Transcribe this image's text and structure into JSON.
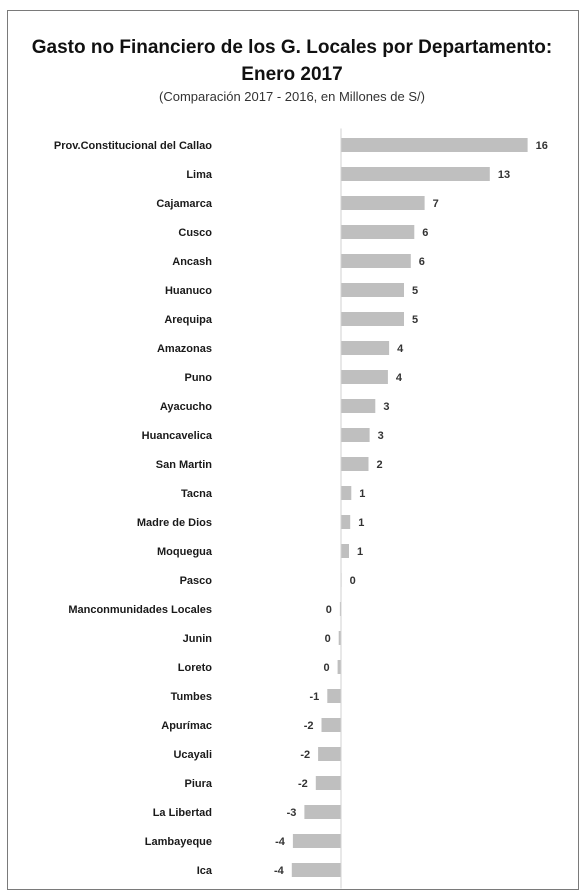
{
  "chart_data": {
    "type": "bar",
    "orientation": "horizontal",
    "title_line1": "Gasto no Financiero de los G. Locales por Departamento:",
    "title_line2": "Enero 2017",
    "subtitle": "(Comparación 2017 - 2016, en Millones de S/)",
    "bar_color": "#bfbfbf",
    "categories": [
      "Prov.Constitucional del Callao",
      "Lima",
      "Cajamarca",
      "Cusco",
      "Ancash",
      "Huanuco",
      "Arequipa",
      "Amazonas",
      "Puno",
      "Ayacucho",
      "Huancavelica",
      "San Martin",
      "Tacna",
      "Madre de Dios",
      "Moquegua",
      "Pasco",
      "Manconmunidades  Locales",
      "Junin",
      "Loreto",
      "Tumbes",
      "Apurímac",
      "Ucayali",
      "Piura",
      "La Libertad",
      "Lambayeque",
      "Ica"
    ],
    "values": [
      16.3,
      13.0,
      7.3,
      6.4,
      6.1,
      5.5,
      5.5,
      4.2,
      4.1,
      3.0,
      2.5,
      2.4,
      0.9,
      0.8,
      0.7,
      0.05,
      -0.1,
      -0.2,
      -0.3,
      -1.2,
      -1.7,
      -2.0,
      -2.2,
      -3.2,
      -4.2,
      -4.3
    ],
    "value_labels": [
      "16",
      "13",
      "7",
      "6",
      "6",
      "5",
      "5",
      "4",
      "4",
      "3",
      "3",
      "2",
      "1",
      "1",
      "1",
      "0",
      "0",
      "0",
      "0",
      "-1",
      "-2",
      "-2",
      "-2",
      "-3",
      "-4",
      "-4"
    ],
    "xlim": [
      -5,
      17.5
    ],
    "grid": false,
    "legend": "none"
  }
}
